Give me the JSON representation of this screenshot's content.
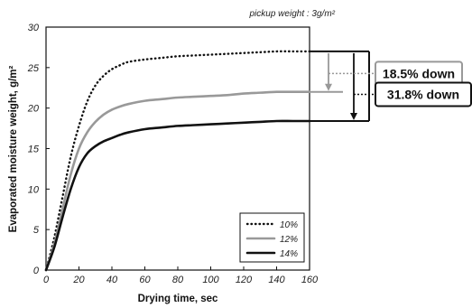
{
  "chart_data": {
    "type": "line",
    "title": "",
    "note": "pickup weight : 3g/m²",
    "xlabel": "Drying time, sec",
    "ylabel": "Evaporated moisture weight, g/m²",
    "xlim": [
      0,
      160
    ],
    "ylim": [
      0,
      30
    ],
    "xticks": [
      0,
      20,
      40,
      60,
      80,
      100,
      120,
      140,
      160
    ],
    "yticks": [
      0,
      5,
      10,
      15,
      20,
      25,
      30
    ],
    "grid": false,
    "legend_position": "bottom-right",
    "series": [
      {
        "name": "10%",
        "style": "dotted",
        "color": "#111111",
        "x": [
          0,
          5,
          10,
          15,
          20,
          25,
          30,
          35,
          40,
          45,
          50,
          60,
          70,
          80,
          90,
          100,
          110,
          120,
          130,
          140,
          150,
          160
        ],
        "y": [
          0,
          4.0,
          9.0,
          14.0,
          17.8,
          20.8,
          22.8,
          24.0,
          24.8,
          25.3,
          25.7,
          26.0,
          26.2,
          26.4,
          26.5,
          26.6,
          26.7,
          26.8,
          26.9,
          27.0,
          27.0,
          27.0
        ]
      },
      {
        "name": "12%",
        "style": "solid",
        "color": "#999999",
        "x": [
          0,
          5,
          10,
          15,
          20,
          25,
          30,
          35,
          40,
          45,
          50,
          60,
          70,
          80,
          90,
          100,
          110,
          120,
          130,
          140,
          150,
          160
        ],
        "y": [
          0,
          3.2,
          7.5,
          11.8,
          15.0,
          17.0,
          18.3,
          19.2,
          19.8,
          20.2,
          20.5,
          20.9,
          21.1,
          21.3,
          21.4,
          21.5,
          21.6,
          21.8,
          21.9,
          22.0,
          22.0,
          22.0
        ]
      },
      {
        "name": "14%",
        "style": "solid",
        "color": "#111111",
        "x": [
          0,
          5,
          10,
          15,
          20,
          25,
          30,
          35,
          40,
          45,
          50,
          60,
          70,
          80,
          90,
          100,
          110,
          120,
          130,
          140,
          150,
          160
        ],
        "y": [
          0,
          2.8,
          6.5,
          10.0,
          12.7,
          14.4,
          15.3,
          15.9,
          16.3,
          16.7,
          17.0,
          17.4,
          17.6,
          17.8,
          17.9,
          18.0,
          18.1,
          18.2,
          18.3,
          18.4,
          18.4,
          18.4
        ]
      }
    ],
    "annotations": [
      {
        "text": "18.5% down",
        "from_y": 27.0,
        "to_y": 22.0,
        "color": "#999999"
      },
      {
        "text": "31.8% down",
        "from_y": 27.0,
        "to_y": 18.4,
        "color": "#111111"
      }
    ]
  }
}
